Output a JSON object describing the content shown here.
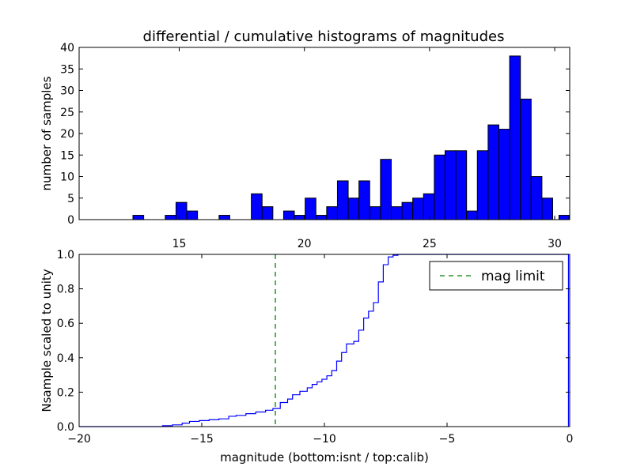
{
  "chart_data": [
    {
      "type": "bar",
      "title": "differential / cumulative histograms of magnitudes",
      "xlabel": "",
      "ylabel": "number of samples",
      "xlim": [
        11.0,
        30.6
      ],
      "ylim": [
        0,
        40
      ],
      "xticks": [
        15,
        20,
        25,
        30
      ],
      "yticks": [
        0,
        5,
        10,
        15,
        20,
        25,
        30,
        35,
        40
      ],
      "tick_labels_position": "bottom",
      "bin_edges": [
        11.0,
        11.43,
        11.86,
        12.29,
        12.72,
        13.15,
        13.58,
        14.01,
        14.44,
        14.87,
        15.3,
        15.73,
        16.16,
        16.59,
        17.02,
        17.45,
        17.88,
        18.31,
        18.74,
        19.17,
        19.6,
        20.03,
        20.46,
        20.89,
        21.32,
        21.75,
        22.18,
        22.61,
        23.04,
        23.47,
        23.9,
        24.33,
        24.76,
        25.19,
        25.62,
        26.05,
        26.48,
        26.91,
        27.34,
        27.77,
        28.2,
        28.63,
        29.06,
        29.49,
        29.92,
        30.35
      ],
      "counts": [
        0,
        0,
        0,
        0,
        0,
        1,
        0,
        0,
        1,
        4,
        2,
        0,
        0,
        1,
        0,
        0,
        6,
        3,
        0,
        2,
        1,
        5,
        1,
        3,
        9,
        5,
        9,
        3,
        14,
        3,
        4,
        5,
        6,
        15,
        16,
        16,
        2,
        16,
        22,
        21,
        38,
        28,
        10,
        5,
        0
      ],
      "extra_bars": [
        {
          "left": 30.17,
          "right": 30.57,
          "count": 1
        }
      ],
      "bar_color": "#0000ff",
      "grid": false
    },
    {
      "type": "line",
      "xlabel": "magnitude (bottom:isnt / top:calib)",
      "ylabel": "Nsample scaled to unity",
      "xlim": [
        -20,
        0
      ],
      "ylim": [
        0.0,
        1.0
      ],
      "xticks": [
        -20,
        -15,
        -10,
        -5,
        0
      ],
      "yticks": [
        0.0,
        0.2,
        0.4,
        0.6,
        0.8,
        1.0
      ],
      "xtick_labels": [
        "−20",
        "−15",
        "−10",
        "−5",
        "0"
      ],
      "ytick_labels": [
        "0.0",
        "0.2",
        "0.4",
        "0.6",
        "0.8",
        "1.0"
      ],
      "series": [
        {
          "drawstyle": "steps",
          "color": "#0000ff",
          "x": [
            -20.0,
            -16.6,
            -16.2,
            -15.8,
            -15.5,
            -15.1,
            -14.7,
            -14.3,
            -13.9,
            -13.6,
            -13.2,
            -12.8,
            -12.4,
            -12.1,
            -11.8,
            -11.5,
            -11.3,
            -11.0,
            -10.7,
            -10.5,
            -10.3,
            -10.1,
            -9.9,
            -9.7,
            -9.5,
            -9.3,
            -9.1,
            -8.8,
            -8.6,
            -8.4,
            -8.2,
            -8.0,
            -7.8,
            -7.6,
            -7.4,
            -7.2,
            -7.0,
            -0.05
          ],
          "y": [
            0.0,
            0.005,
            0.01,
            0.02,
            0.03,
            0.035,
            0.04,
            0.045,
            0.06,
            0.065,
            0.075,
            0.085,
            0.095,
            0.105,
            0.14,
            0.16,
            0.185,
            0.205,
            0.225,
            0.245,
            0.26,
            0.275,
            0.295,
            0.325,
            0.38,
            0.43,
            0.48,
            0.495,
            0.56,
            0.63,
            0.67,
            0.72,
            0.84,
            0.94,
            0.985,
            0.995,
            1.0,
            1.0
          ]
        },
        {
          "name": "mag limit",
          "drawstyle": "vertical-dashed",
          "color": "#007f00",
          "x": -12.0
        }
      ],
      "legend": {
        "position": "top-right",
        "entries": [
          "mag limit"
        ]
      },
      "grid": false
    }
  ]
}
